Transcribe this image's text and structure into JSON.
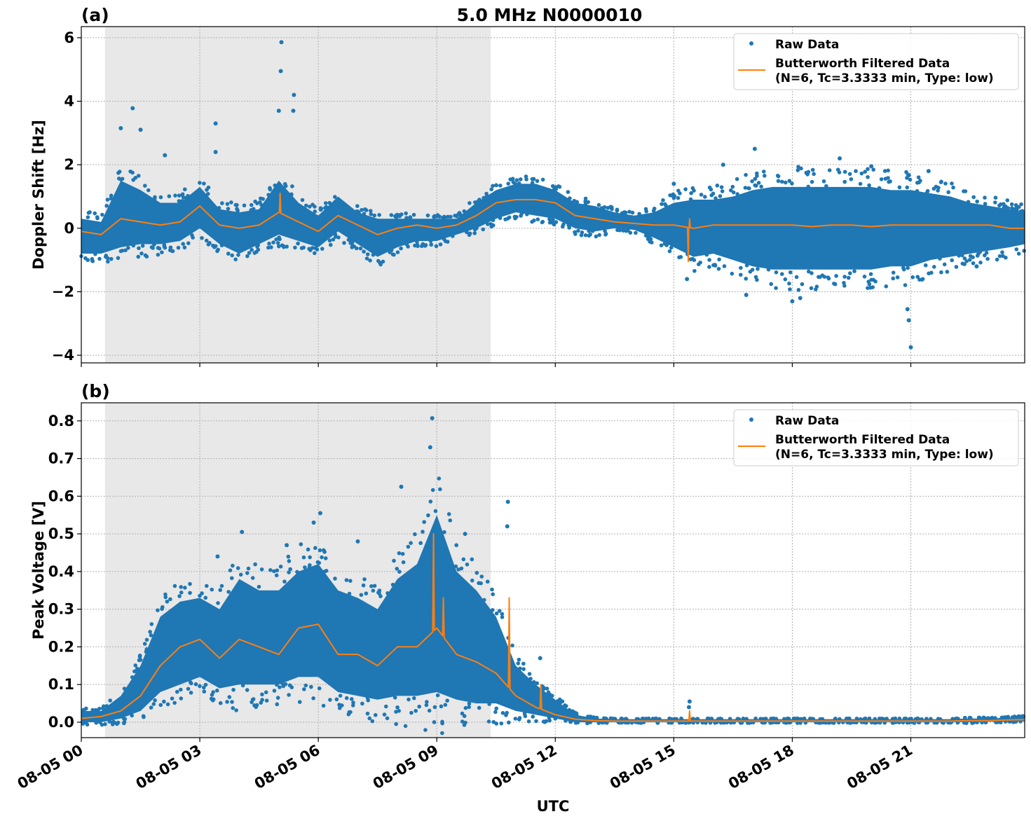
{
  "title": "5.0 MHz N0000010",
  "xlabel": "UTC",
  "colors": {
    "raw": "#1f77b4",
    "filtered": "#ff7f0e",
    "shade": "#e8e8e8",
    "grid": "#b0b0b0"
  },
  "chart_data": [
    {
      "type": "scatter",
      "panel_label": "(a)",
      "ylabel": "Doppler Shift [Hz]",
      "ylim": [
        -4.24,
        6.35
      ],
      "xlim": [
        "08-05 00:00",
        "08-05 23:53"
      ],
      "yticks": [
        6,
        4,
        2,
        0,
        -2,
        -4
      ],
      "ytick_labels": [
        "6",
        "4",
        "2",
        "0",
        "−2",
        "−4"
      ],
      "xticks": [
        "08-05 00:00",
        "08-05 03:00",
        "08-05 06:00",
        "08-05 09:00",
        "08-05 12:00",
        "08-05 15:00",
        "08-05 18:00",
        "08-05 21:00"
      ],
      "xtick_labels": [
        "08-05 00",
        "08-05 03",
        "08-05 06",
        "08-05 09",
        "08-05 12",
        "08-05 15",
        "08-05 18",
        "08-05 21"
      ],
      "grid": true,
      "shaded_span": [
        "08-05 00:36",
        "08-05 10:22"
      ],
      "legend": {
        "placement": "top-right",
        "entries": [
          "Raw Data",
          "Butterworth Filtered Data",
          "(N=6, Tc=3.3333 min, Type: low)"
        ]
      },
      "x": [
        "08-05 00:00",
        "08-05 00:30",
        "08-05 01:00",
        "08-05 01:30",
        "08-05 02:00",
        "08-05 02:30",
        "08-05 03:00",
        "08-05 03:30",
        "08-05 04:00",
        "08-05 04:30",
        "08-05 05:00",
        "08-05 05:30",
        "08-05 06:00",
        "08-05 06:30",
        "08-05 07:00",
        "08-05 07:30",
        "08-05 08:00",
        "08-05 08:30",
        "08-05 09:00",
        "08-05 09:30",
        "08-05 10:00",
        "08-05 10:30",
        "08-05 11:00",
        "08-05 11:30",
        "08-05 12:00",
        "08-05 12:30",
        "08-05 13:00",
        "08-05 13:30",
        "08-05 14:00",
        "08-05 14:30",
        "08-05 15:00",
        "08-05 15:30",
        "08-05 16:00",
        "08-05 16:30",
        "08-05 17:00",
        "08-05 17:30",
        "08-05 18:00",
        "08-05 18:30",
        "08-05 19:00",
        "08-05 19:30",
        "08-05 20:00",
        "08-05 20:30",
        "08-05 21:00",
        "08-05 21:30",
        "08-05 22:00",
        "08-05 22:30",
        "08-05 23:00",
        "08-05 23:30",
        "08-05 23:53"
      ],
      "filtered": [
        -0.1,
        -0.2,
        0.3,
        0.2,
        0.1,
        0.2,
        0.7,
        0.1,
        0.0,
        0.1,
        0.5,
        0.2,
        -0.1,
        0.4,
        0.1,
        -0.2,
        0.0,
        0.1,
        0.0,
        0.1,
        0.4,
        0.8,
        0.9,
        0.9,
        0.8,
        0.4,
        0.3,
        0.2,
        0.15,
        0.1,
        0.1,
        0.0,
        0.1,
        0.1,
        0.1,
        0.1,
        0.1,
        0.05,
        0.1,
        0.1,
        0.05,
        0.1,
        0.1,
        0.1,
        0.1,
        0.1,
        0.1,
        0.0,
        0.0
      ],
      "raw_upper": [
        0.3,
        0.2,
        1.5,
        1.2,
        0.8,
        0.8,
        1.3,
        0.6,
        0.5,
        0.6,
        1.5,
        0.8,
        0.4,
        1.0,
        0.5,
        0.3,
        0.3,
        0.3,
        0.3,
        0.3,
        0.8,
        1.2,
        1.4,
        1.4,
        1.2,
        0.8,
        0.7,
        0.5,
        0.4,
        0.5,
        0.8,
        0.9,
        0.9,
        1.0,
        1.2,
        1.3,
        1.3,
        1.3,
        1.3,
        1.3,
        1.3,
        1.2,
        1.2,
        1.1,
        1.0,
        0.8,
        0.7,
        0.6,
        0.5
      ],
      "raw_lower": [
        -0.8,
        -0.8,
        -0.6,
        -0.5,
        -0.5,
        -0.4,
        0.0,
        -0.5,
        -0.8,
        -0.5,
        -0.2,
        -0.4,
        -0.6,
        -0.1,
        -0.5,
        -0.9,
        -0.6,
        -0.4,
        -0.4,
        -0.2,
        0.0,
        0.3,
        0.5,
        0.4,
        0.3,
        0.0,
        -0.1,
        0.0,
        -0.05,
        -0.3,
        -0.6,
        -0.9,
        -0.8,
        -1.0,
        -1.2,
        -1.3,
        -1.3,
        -1.3,
        -1.3,
        -1.3,
        -1.3,
        -1.2,
        -1.2,
        -1.0,
        -0.9,
        -0.8,
        -0.7,
        -0.6,
        -0.5
      ],
      "raw_outliers": [
        [
          "08-05 01:18",
          3.78
        ],
        [
          "08-05 01:00",
          3.15
        ],
        [
          "08-05 01:30",
          3.1
        ],
        [
          "08-05 02:07",
          2.3
        ],
        [
          "08-05 03:24",
          3.3
        ],
        [
          "08-05 03:24",
          2.4
        ],
        [
          "08-05 05:04",
          5.86
        ],
        [
          "08-05 05:03",
          4.95
        ],
        [
          "08-05 05:00",
          3.7
        ],
        [
          "08-05 05:23",
          4.2
        ],
        [
          "08-05 05:22",
          3.7
        ],
        [
          "08-05 15:20",
          -1.6
        ],
        [
          "08-05 15:00",
          1.4
        ],
        [
          "08-05 16:15",
          2.0
        ],
        [
          "08-05 17:03",
          2.5
        ],
        [
          "08-05 19:12",
          2.2
        ],
        [
          "08-05 18:00",
          -2.3
        ],
        [
          "08-05 18:12",
          -2.2
        ],
        [
          "08-05 16:50",
          -2.1
        ],
        [
          "08-05 20:55",
          -2.55
        ],
        [
          "08-05 20:57",
          -2.9
        ],
        [
          "08-05 21:00",
          -3.75
        ],
        [
          "08-05 21:27",
          1.8
        ],
        [
          "08-05 20:00",
          1.95
        ],
        [
          "08-05 22:40",
          -1.2
        ]
      ],
      "filtered_spikes": [
        [
          "08-05 05:02",
          1.1
        ],
        [
          "08-05 15:22",
          -1.05
        ],
        [
          "08-05 15:24",
          0.3
        ]
      ]
    },
    {
      "type": "scatter",
      "panel_label": "(b)",
      "ylabel": "Peak Voltage [V]",
      "ylim": [
        -0.041,
        0.848
      ],
      "xlim": [
        "08-05 00:00",
        "08-05 23:53"
      ],
      "yticks": [
        0.8,
        0.7,
        0.6,
        0.5,
        0.4,
        0.3,
        0.2,
        0.1,
        0.0
      ],
      "ytick_labels": [
        "0.8",
        "0.7",
        "0.6",
        "0.5",
        "0.4",
        "0.3",
        "0.2",
        "0.1",
        "0.0"
      ],
      "xticks": [
        "08-05 00:00",
        "08-05 03:00",
        "08-05 06:00",
        "08-05 09:00",
        "08-05 12:00",
        "08-05 15:00",
        "08-05 18:00",
        "08-05 21:00"
      ],
      "xtick_labels": [
        "08-05 00",
        "08-05 03",
        "08-05 06",
        "08-05 09",
        "08-05 12",
        "08-05 15",
        "08-05 18",
        "08-05 21"
      ],
      "grid": true,
      "shaded_span": [
        "08-05 00:36",
        "08-05 10:22"
      ],
      "legend": {
        "placement": "top-right",
        "entries": [
          "Raw Data",
          "Butterworth Filtered Data",
          "(N=6, Tc=3.3333 min, Type: low)"
        ]
      },
      "x": [
        "08-05 00:00",
        "08-05 00:30",
        "08-05 01:00",
        "08-05 01:30",
        "08-05 02:00",
        "08-05 02:30",
        "08-05 03:00",
        "08-05 03:30",
        "08-05 04:00",
        "08-05 04:30",
        "08-05 05:00",
        "08-05 05:30",
        "08-05 06:00",
        "08-05 06:30",
        "08-05 07:00",
        "08-05 07:30",
        "08-05 08:00",
        "08-05 08:30",
        "08-05 09:00",
        "08-05 09:30",
        "08-05 10:00",
        "08-05 10:30",
        "08-05 11:00",
        "08-05 11:30",
        "08-05 12:00",
        "08-05 12:30",
        "08-05 13:00",
        "08-05 13:30",
        "08-05 14:00",
        "08-05 14:30",
        "08-05 15:00",
        "08-05 15:30",
        "08-05 16:00",
        "08-05 16:30",
        "08-05 17:00",
        "08-05 17:30",
        "08-05 18:00",
        "08-05 18:30",
        "08-05 19:00",
        "08-05 19:30",
        "08-05 20:00",
        "08-05 20:30",
        "08-05 21:00",
        "08-05 21:30",
        "08-05 22:00",
        "08-05 22:30",
        "08-05 23:00",
        "08-05 23:30",
        "08-05 23:53"
      ],
      "filtered": [
        0.01,
        0.015,
        0.03,
        0.07,
        0.15,
        0.2,
        0.22,
        0.17,
        0.22,
        0.2,
        0.18,
        0.25,
        0.26,
        0.18,
        0.18,
        0.15,
        0.2,
        0.2,
        0.25,
        0.18,
        0.16,
        0.13,
        0.07,
        0.04,
        0.02,
        0.008,
        0.004,
        0.003,
        0.003,
        0.003,
        0.003,
        0.003,
        0.003,
        0.003,
        0.003,
        0.003,
        0.003,
        0.003,
        0.003,
        0.003,
        0.003,
        0.003,
        0.003,
        0.003,
        0.003,
        0.004,
        0.004,
        0.006,
        0.007
      ],
      "raw_upper": [
        0.03,
        0.03,
        0.07,
        0.15,
        0.28,
        0.32,
        0.33,
        0.3,
        0.38,
        0.35,
        0.35,
        0.4,
        0.42,
        0.35,
        0.33,
        0.3,
        0.38,
        0.42,
        0.55,
        0.4,
        0.35,
        0.28,
        0.15,
        0.1,
        0.06,
        0.02,
        0.01,
        0.008,
        0.008,
        0.008,
        0.008,
        0.008,
        0.008,
        0.008,
        0.008,
        0.008,
        0.008,
        0.008,
        0.008,
        0.008,
        0.008,
        0.008,
        0.008,
        0.008,
        0.008,
        0.01,
        0.01,
        0.012,
        0.014
      ],
      "raw_lower": [
        0,
        0,
        0.01,
        0.03,
        0.08,
        0.1,
        0.12,
        0.09,
        0.1,
        0.1,
        0.1,
        0.12,
        0.12,
        0.08,
        0.07,
        0.06,
        0.07,
        0.07,
        0.08,
        0.06,
        0.05,
        0.05,
        0.03,
        0.02,
        0.01,
        0,
        0,
        0,
        0,
        0,
        0,
        0,
        0,
        0,
        0,
        0,
        0,
        0,
        0,
        0,
        0,
        0,
        0,
        0,
        0,
        0,
        0.001,
        0.002,
        0.002
      ],
      "raw_outliers": [
        [
          "08-05 08:53",
          0.807
        ],
        [
          "08-05 08:50",
          0.73
        ],
        [
          "08-05 10:48",
          0.585
        ],
        [
          "08-05 10:47",
          0.52
        ],
        [
          "08-05 08:06",
          0.625
        ],
        [
          "08-05 06:03",
          0.555
        ],
        [
          "08-05 05:53",
          0.53
        ],
        [
          "08-05 04:04",
          0.505
        ],
        [
          "08-05 09:43",
          0.5
        ],
        [
          "08-05 05:12",
          0.47
        ],
        [
          "08-05 07:00",
          0.48
        ],
        [
          "08-05 03:27",
          0.44
        ],
        [
          "08-05 11:37",
          0.17
        ],
        [
          "08-05 15:24",
          0.055
        ],
        [
          "08-05 15:23",
          0.04
        ]
      ],
      "filtered_spikes": [
        [
          "08-05 08:55",
          0.5
        ],
        [
          "08-05 09:10",
          0.33
        ],
        [
          "08-05 10:50",
          0.33
        ],
        [
          "08-05 11:38",
          0.1
        ],
        [
          "08-05 15:24",
          0.03
        ]
      ]
    }
  ]
}
